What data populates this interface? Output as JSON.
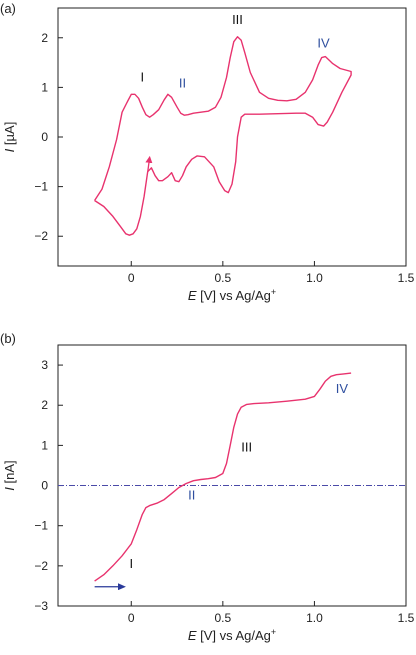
{
  "colors": {
    "curve": "#e8336e",
    "axis": "#222222",
    "roman_black": "#111111",
    "roman_blue": "#2f4f9f",
    "baseline": "#4a4aa8",
    "arrow": "#2a3a9a"
  },
  "charts": [
    {
      "panel_label": "(a)",
      "chart_data": {
        "type": "line",
        "title": "",
        "xlabel_italic": "E",
        "xlabel_rest": " [V] vs Ag/Ag",
        "xlabel_sup": "+",
        "ylabel_italic": "I",
        "ylabel_rest": " [µA]",
        "xlim": [
          -0.4,
          1.5
        ],
        "ylim": [
          -2.6,
          2.6
        ],
        "xticks": [
          0,
          0.5,
          1,
          1.5
        ],
        "xtick_labels": [
          "0",
          "0.5",
          "1.0",
          "1.5"
        ],
        "yticks": [
          -2,
          -1,
          0,
          1,
          2
        ],
        "ytick_labels": [
          "−2",
          "−1",
          "0",
          "1",
          "2"
        ],
        "grid": false,
        "series": [
          {
            "x": [
              -0.2,
              -0.16,
              -0.12,
              -0.08,
              -0.05,
              -0.02,
              0.0,
              0.02,
              0.04,
              0.06,
              0.08,
              0.1,
              0.12,
              0.15,
              0.18,
              0.2,
              0.22,
              0.25,
              0.27,
              0.29,
              0.31,
              0.34,
              0.38,
              0.42,
              0.46,
              0.49,
              0.52,
              0.54,
              0.56,
              0.58,
              0.6,
              0.62,
              0.65,
              0.7,
              0.75,
              0.8,
              0.85,
              0.9,
              0.95,
              0.99,
              1.02,
              1.04,
              1.06,
              1.08,
              1.1,
              1.14,
              1.2,
              1.2,
              1.15,
              1.1,
              1.07,
              1.05,
              1.02,
              0.99,
              0.95,
              0.9,
              0.8,
              0.7,
              0.62,
              0.6,
              0.58,
              0.57,
              0.55,
              0.53,
              0.51,
              0.48,
              0.45,
              0.4,
              0.36,
              0.33,
              0.3,
              0.28,
              0.26,
              0.24,
              0.22,
              0.2,
              0.17,
              0.15,
              0.13,
              0.11,
              0.09,
              0.07,
              0.05,
              0.03,
              0.01,
              -0.01,
              -0.03,
              -0.06,
              -0.1,
              -0.15,
              -0.2
            ],
            "y": [
              -1.28,
              -1.05,
              -0.6,
              -0.05,
              0.5,
              0.72,
              0.86,
              0.86,
              0.78,
              0.6,
              0.45,
              0.4,
              0.45,
              0.55,
              0.75,
              0.86,
              0.8,
              0.6,
              0.48,
              0.44,
              0.45,
              0.48,
              0.5,
              0.52,
              0.6,
              0.8,
              1.2,
              1.6,
              1.92,
              2.02,
              1.95,
              1.7,
              1.3,
              0.9,
              0.78,
              0.74,
              0.73,
              0.76,
              0.9,
              1.15,
              1.45,
              1.6,
              1.62,
              1.55,
              1.48,
              1.38,
              1.32,
              1.25,
              0.9,
              0.5,
              0.3,
              0.22,
              0.25,
              0.4,
              0.48,
              0.48,
              0.47,
              0.46,
              0.46,
              0.4,
              0.0,
              -0.5,
              -0.95,
              -1.12,
              -1.08,
              -0.9,
              -0.6,
              -0.4,
              -0.38,
              -0.45,
              -0.6,
              -0.78,
              -0.9,
              -0.88,
              -0.72,
              -0.8,
              -0.88,
              -0.88,
              -0.78,
              -0.62,
              -0.7,
              -1.2,
              -1.6,
              -1.85,
              -1.95,
              -1.98,
              -1.95,
              -1.8,
              -1.6,
              -1.4,
              -1.28
            ]
          }
        ],
        "annotations": [
          {
            "text": "I",
            "x": 0.06,
            "y": 1.12,
            "color": "black"
          },
          {
            "text": "II",
            "x": 0.28,
            "y": 1.0,
            "color": "blue"
          },
          {
            "text": "III",
            "x": 0.58,
            "y": 2.28,
            "color": "black"
          },
          {
            "text": "IV",
            "x": 1.05,
            "y": 1.8,
            "color": "blue"
          }
        ],
        "arrow": {
          "x": [
            0.09,
            0.1
          ],
          "y": [
            -0.7,
            -0.42
          ]
        }
      }
    },
    {
      "panel_label": "(b)",
      "chart_data": {
        "type": "line",
        "title": "",
        "xlabel_italic": "E",
        "xlabel_rest": " [V] vs Ag/Ag",
        "xlabel_sup": "+",
        "ylabel_italic": "I",
        "ylabel_rest": " [nA]",
        "xlim": [
          -0.4,
          1.5
        ],
        "ylim": [
          -3.0,
          3.5
        ],
        "xticks": [
          0,
          0.5,
          1,
          1.5
        ],
        "xtick_labels": [
          "0",
          "0.5",
          "1.0",
          "1.5"
        ],
        "yticks": [
          -3,
          -2,
          -1,
          0,
          1,
          2,
          3
        ],
        "ytick_labels": [
          "−3",
          "−2",
          "−1",
          "0",
          "1",
          "2",
          "3"
        ],
        "grid": false,
        "baseline_y": 0,
        "series": [
          {
            "x": [
              -0.2,
              -0.15,
              -0.1,
              -0.05,
              0.0,
              0.03,
              0.06,
              0.08,
              0.1,
              0.14,
              0.18,
              0.22,
              0.26,
              0.3,
              0.34,
              0.38,
              0.42,
              0.46,
              0.5,
              0.52,
              0.54,
              0.56,
              0.58,
              0.6,
              0.63,
              0.67,
              0.75,
              0.85,
              0.95,
              1.0,
              1.03,
              1.06,
              1.09,
              1.12,
              1.16,
              1.2
            ],
            "y": [
              -2.38,
              -2.22,
              -2.0,
              -1.75,
              -1.45,
              -1.1,
              -0.72,
              -0.55,
              -0.5,
              -0.44,
              -0.35,
              -0.2,
              -0.05,
              0.05,
              0.12,
              0.15,
              0.17,
              0.2,
              0.3,
              0.55,
              1.0,
              1.45,
              1.78,
              1.95,
              2.02,
              2.04,
              2.06,
              2.1,
              2.15,
              2.22,
              2.4,
              2.6,
              2.72,
              2.76,
              2.78,
              2.8
            ]
          }
        ],
        "annotations": [
          {
            "text": "I",
            "x": 0.0,
            "y": -2.05,
            "color": "black"
          },
          {
            "text": "II",
            "x": 0.33,
            "y": -0.35,
            "color": "blue"
          },
          {
            "text": "III",
            "x": 0.63,
            "y": 0.85,
            "color": "black"
          },
          {
            "text": "IV",
            "x": 1.15,
            "y": 2.3,
            "color": "blue"
          }
        ],
        "arrow": {
          "x": [
            -0.2,
            -0.04
          ],
          "y": [
            -2.52,
            -2.52
          ]
        }
      }
    }
  ]
}
